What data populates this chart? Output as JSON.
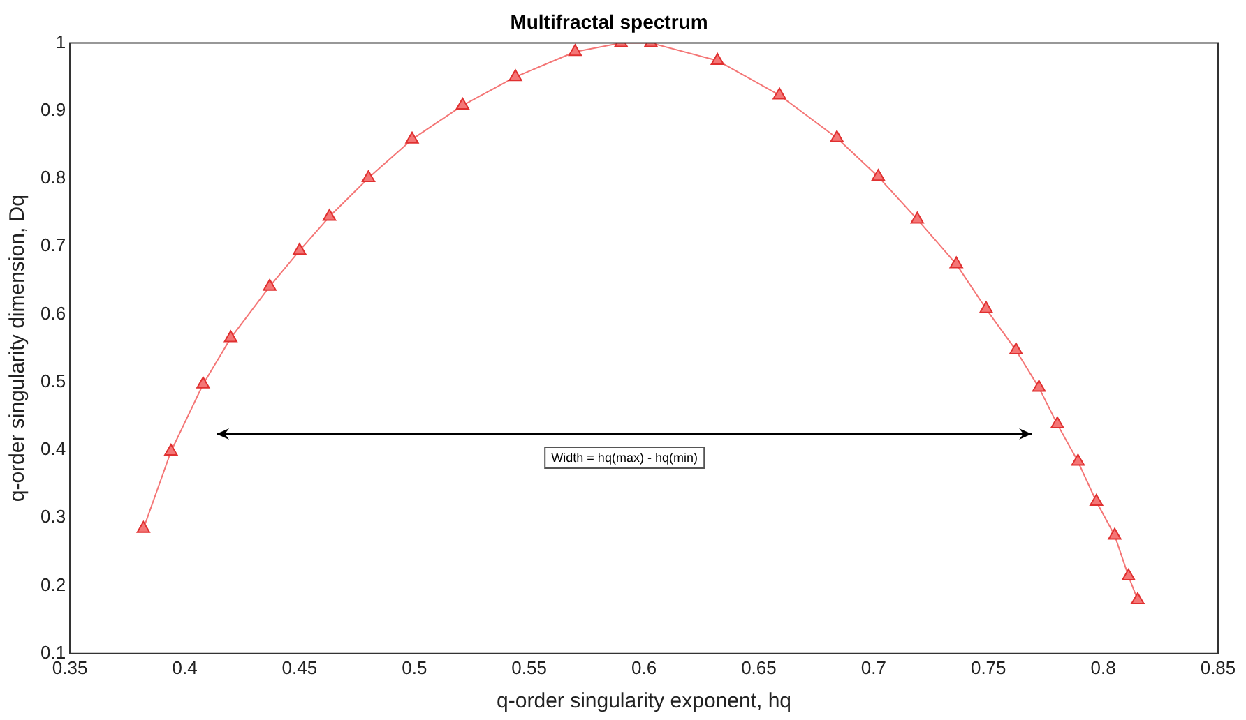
{
  "chart_data": {
    "type": "line",
    "title": "Multifractal spectrum",
    "xlabel": "q-order singularity exponent, hq",
    "ylabel": "q-order singularity dimension, Dq",
    "x": [
      0.382,
      0.394,
      0.408,
      0.42,
      0.437,
      0.45,
      0.463,
      0.48,
      0.499,
      0.521,
      0.544,
      0.57,
      0.59,
      0.603,
      0.632,
      0.659,
      0.684,
      0.702,
      0.719,
      0.736,
      0.749,
      0.762,
      0.772,
      0.78,
      0.789,
      0.797,
      0.805,
      0.811,
      0.815
    ],
    "series": [
      {
        "color": "#f47676",
        "values": [
          0.284,
          0.398,
          0.497,
          0.565,
          0.641,
          0.694,
          0.744,
          0.801,
          0.858,
          0.908,
          0.95,
          0.987,
          1.0,
          1.0,
          0.974,
          0.923,
          0.86,
          0.803,
          0.74,
          0.674,
          0.608,
          0.547,
          0.492,
          0.438,
          0.383,
          0.324,
          0.274,
          0.214,
          0.179
        ]
      }
    ],
    "xlim": [
      0.35,
      0.85
    ],
    "xticks": [
      0.35,
      0.4,
      0.45,
      0.5,
      0.55,
      0.6,
      0.65,
      0.7,
      0.75,
      0.8,
      0.85
    ],
    "ylim": [
      0.1,
      1
    ],
    "yticks": [
      0.1,
      0.2,
      0.3,
      0.4,
      0.5,
      0.6,
      0.7,
      0.8,
      0.9,
      1
    ],
    "grid": false,
    "legend": false,
    "marker": "triangle",
    "line_style": "solid",
    "annotations": [
      "Width = hq(max) - hq(min)"
    ]
  }
}
